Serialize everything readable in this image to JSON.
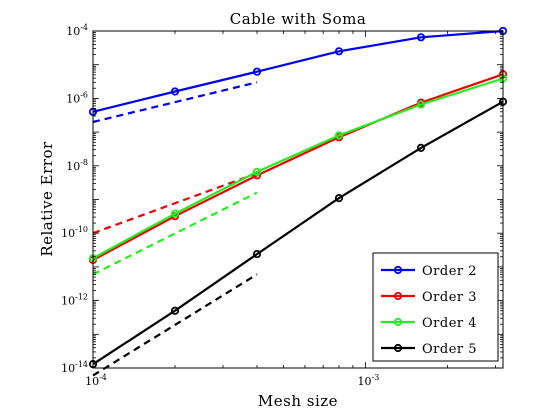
{
  "chart_data": {
    "type": "line",
    "title": "Cable with Soma",
    "xlabel": "Mesh size",
    "ylabel": "Relative Error",
    "xscale": "log",
    "yscale": "log",
    "xlim": [
      0.0001,
      0.0032
    ],
    "ylim": [
      1e-14,
      0.0001
    ],
    "x_ticks": [
      {
        "value": 0.0001,
        "base": "10",
        "exp": "-4"
      },
      {
        "value": 0.001,
        "base": "10",
        "exp": "-3"
      }
    ],
    "y_ticks": [
      {
        "value": 1e-14,
        "base": "10",
        "exp": "-14"
      },
      {
        "value": 1e-12,
        "base": "10",
        "exp": "-12"
      },
      {
        "value": 1e-10,
        "base": "10",
        "exp": "-10"
      },
      {
        "value": 1e-08,
        "base": "10",
        "exp": "-8"
      },
      {
        "value": 1e-06,
        "base": "10",
        "exp": "-6"
      },
      {
        "value": 0.0001,
        "base": "10",
        "exp": "-4"
      }
    ],
    "grid": false,
    "legend_position": "bottom-right",
    "x": [
      0.0001,
      0.0002,
      0.0004,
      0.0008,
      0.0016,
      0.0032
    ],
    "series": [
      {
        "name": "Order 2",
        "color": "#0000ee",
        "values": [
          4e-07,
          1.6e-06,
          6.2e-06,
          2.5e-05,
          6.5e-05,
          0.0001
        ]
      },
      {
        "name": "Order 3",
        "color": "#ee0000",
        "values": [
          1.6e-11,
          3.2e-10,
          5.2e-09,
          7e-08,
          7.5e-07,
          5.2e-06
        ]
      },
      {
        "name": "Order 4",
        "color": "#22ee22",
        "values": [
          1.8e-11,
          3.8e-10,
          6.6e-09,
          8e-08,
          6.6e-07,
          3.9e-06
        ]
      },
      {
        "name": "Order 5",
        "color": "#000000",
        "values": [
          1.3e-14,
          5e-13,
          2.4e-11,
          1.1e-09,
          3.4e-08,
          8e-07
        ]
      }
    ],
    "reference_lines": [
      {
        "color": "#0000ee",
        "x": [
          0.0001,
          0.0004
        ],
        "y": [
          2e-07,
          3e-06
        ]
      },
      {
        "color": "#ee0000",
        "x": [
          0.0001,
          0.0004
        ],
        "y": [
          1e-10,
          6e-09
        ]
      },
      {
        "color": "#22ee22",
        "x": [
          0.0001,
          0.0004
        ],
        "y": [
          6e-12,
          1.6e-09
        ]
      },
      {
        "color": "#000000",
        "x": [
          0.0001,
          0.0004
        ],
        "y": [
          6e-15,
          6e-12
        ]
      }
    ]
  }
}
